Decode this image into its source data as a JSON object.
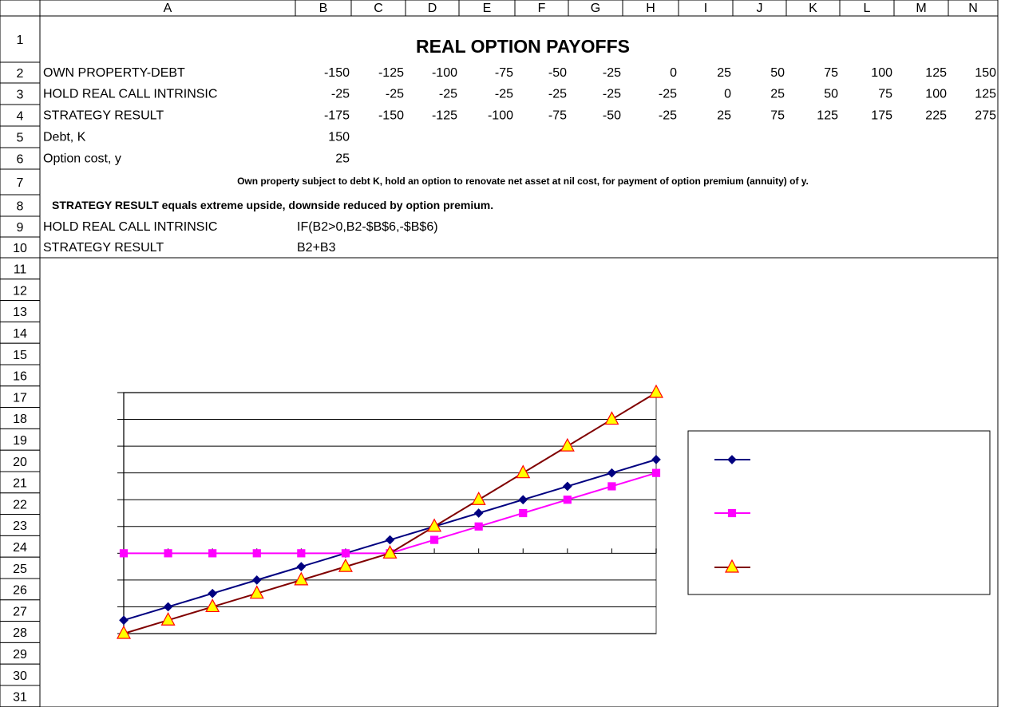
{
  "columns": [
    "A",
    "B",
    "C",
    "D",
    "E",
    "F",
    "G",
    "H",
    "I",
    "J",
    "K",
    "L",
    "M",
    "N"
  ],
  "row_numbers": [
    1,
    2,
    3,
    4,
    5,
    6,
    7,
    8,
    9,
    10,
    11,
    12,
    13,
    14,
    15,
    16,
    17,
    18,
    19,
    20,
    21,
    22,
    23,
    24,
    25,
    26,
    27,
    28,
    29,
    30,
    31
  ],
  "title": "REAL OPTION PAYOFFS",
  "data_rows": [
    {
      "label": "OWN PROPERTY-DEBT",
      "values": [
        -150,
        -125,
        -100,
        -75,
        -50,
        -25,
        0,
        25,
        50,
        75,
        100,
        125,
        150
      ]
    },
    {
      "label": "HOLD REAL CALL INTRINSIC",
      "values": [
        -25,
        -25,
        -25,
        -25,
        -25,
        -25,
        -25,
        0,
        25,
        50,
        75,
        100,
        125
      ]
    },
    {
      "label": "STRATEGY RESULT",
      "values": [
        -175,
        -150,
        -125,
        -100,
        -75,
        -50,
        -25,
        25,
        75,
        125,
        175,
        225,
        275
      ]
    }
  ],
  "params": [
    {
      "label": "Debt, K",
      "value": 150
    },
    {
      "label": "Option cost, y",
      "value": 25
    }
  ],
  "note1": "Own property subject to debt K, hold an option to renovate net asset at nil cost, for payment of option premium  (annuity) of y.",
  "note2_bold": "STRATEGY RESULT",
  "note2": " equals extreme upside, downside reduced by option premium.",
  "formulas": [
    {
      "label": "HOLD REAL CALL INTRINSIC",
      "formula": "IF(B2>0,B2-$B$6,-$B$6)"
    },
    {
      "label": "STRATEGY RESULT",
      "formula": "B2+B3"
    }
  ],
  "chart": {
    "type": "line",
    "ylim": [
      -175,
      275
    ],
    "yticks": [
      -175,
      -125,
      -75,
      -25,
      25,
      75,
      125,
      175,
      225,
      275
    ],
    "series": [
      {
        "color": "#000080",
        "marker": "diamond",
        "marker_fill": "#000080",
        "marker_stroke": "#000080"
      },
      {
        "color": "#ff00ff",
        "marker": "square",
        "marker_fill": "#ff00ff",
        "marker_stroke": "#ff00ff"
      },
      {
        "color": "#800000",
        "marker": "triangle",
        "marker_fill": "#ffff00",
        "marker_stroke": "#ff0000"
      }
    ]
  }
}
